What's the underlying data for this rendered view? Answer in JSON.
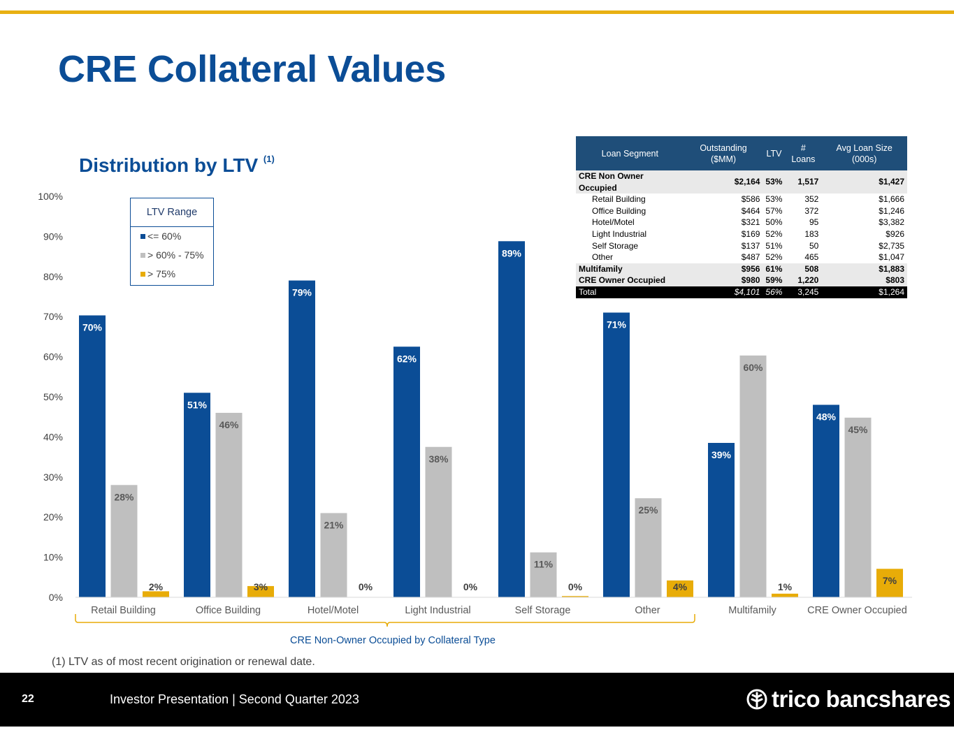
{
  "slide": {
    "title": "CRE Collateral Values",
    "subtitle": "Distribution by LTV",
    "subtitle_note": "(1)",
    "footnote": "(1)  LTV as of most recent origination or renewal date.",
    "page_number": "22",
    "footer_text": "Investor Presentation | Second Quarter 2023",
    "logo_text": "trico bancshares"
  },
  "legend": {
    "title": "LTV Range",
    "items": [
      {
        "label": "<= 60%",
        "color": "#0b4d96"
      },
      {
        "label": "> 60% - 75%",
        "color": "#bfbfbf"
      },
      {
        "label": "> 75%",
        "color": "#e8ac08"
      }
    ]
  },
  "chart_data": {
    "type": "bar",
    "categories": [
      "Retail Building",
      "Office Building",
      "Hotel/Motel",
      "Light Industrial",
      "Self Storage",
      "Other",
      "Multifamily",
      "CRE Owner Occupied"
    ],
    "series": [
      {
        "name": "<= 60%",
        "color": "#0b4d96",
        "values": [
          70.3,
          51,
          79,
          62.5,
          88.8,
          71,
          38.5,
          48
        ],
        "labels": [
          "70%",
          "51%",
          "79%",
          "62%",
          "89%",
          "71%",
          "39%",
          "48%"
        ]
      },
      {
        "name": "> 60% - 75%",
        "color": "#bfbfbf",
        "values": [
          28,
          46,
          21,
          37.5,
          11.2,
          24.7,
          60.3,
          44.8
        ],
        "labels": [
          "28%",
          "46%",
          "21%",
          "38%",
          "11%",
          "25%",
          "60%",
          "45%"
        ]
      },
      {
        "name": "> 75%",
        "color": "#e8ac08",
        "values": [
          1.5,
          2.8,
          0,
          0,
          0.3,
          4.2,
          0.9,
          7.1
        ],
        "labels": [
          "2%",
          "3%",
          "0%",
          "0%",
          "0%",
          "4%",
          "1%",
          "7%"
        ]
      }
    ],
    "ylim": [
      0,
      100
    ],
    "yticks": [
      "0%",
      "10%",
      "20%",
      "30%",
      "40%",
      "50%",
      "60%",
      "70%",
      "80%",
      "90%",
      "100%"
    ],
    "group_label": "CRE Non-Owner Occupied by Collateral Type",
    "grid": false,
    "legend_position": "top-left"
  },
  "table": {
    "headers": [
      "Loan Segment",
      "Outstanding ($MM)",
      "LTV",
      "# Loans",
      "Avg Loan Size (000s)"
    ],
    "rows": [
      {
        "cells": [
          "CRE Non Owner Occupied",
          "$2,164",
          "53%",
          "1,517",
          "$1,427"
        ],
        "kind": "grp"
      },
      {
        "cells": [
          "Retail Building",
          "$586",
          "53%",
          "352",
          "$1,666"
        ],
        "kind": "sub"
      },
      {
        "cells": [
          "Office Building",
          "$464",
          "57%",
          "372",
          "$1,246"
        ],
        "kind": "sub"
      },
      {
        "cells": [
          "Hotel/Motel",
          "$321",
          "50%",
          "95",
          "$3,382"
        ],
        "kind": "sub"
      },
      {
        "cells": [
          "Light Industrial",
          "$169",
          "52%",
          "183",
          "$926"
        ],
        "kind": "sub"
      },
      {
        "cells": [
          "Self Storage",
          "$137",
          "51%",
          "50",
          "$2,735"
        ],
        "kind": "sub"
      },
      {
        "cells": [
          "Other",
          "$487",
          "52%",
          "465",
          "$1,047"
        ],
        "kind": "sub"
      },
      {
        "cells": [
          "Multifamily",
          "$956",
          "61%",
          "508",
          "$1,883"
        ],
        "kind": "grp"
      },
      {
        "cells": [
          "CRE Owner Occupied",
          "$980",
          "59%",
          "1,220",
          "$803"
        ],
        "kind": "grp"
      },
      {
        "cells": [
          "Total",
          "$4,101",
          "56%",
          "3,245",
          "$1,264"
        ],
        "kind": "total"
      }
    ]
  }
}
